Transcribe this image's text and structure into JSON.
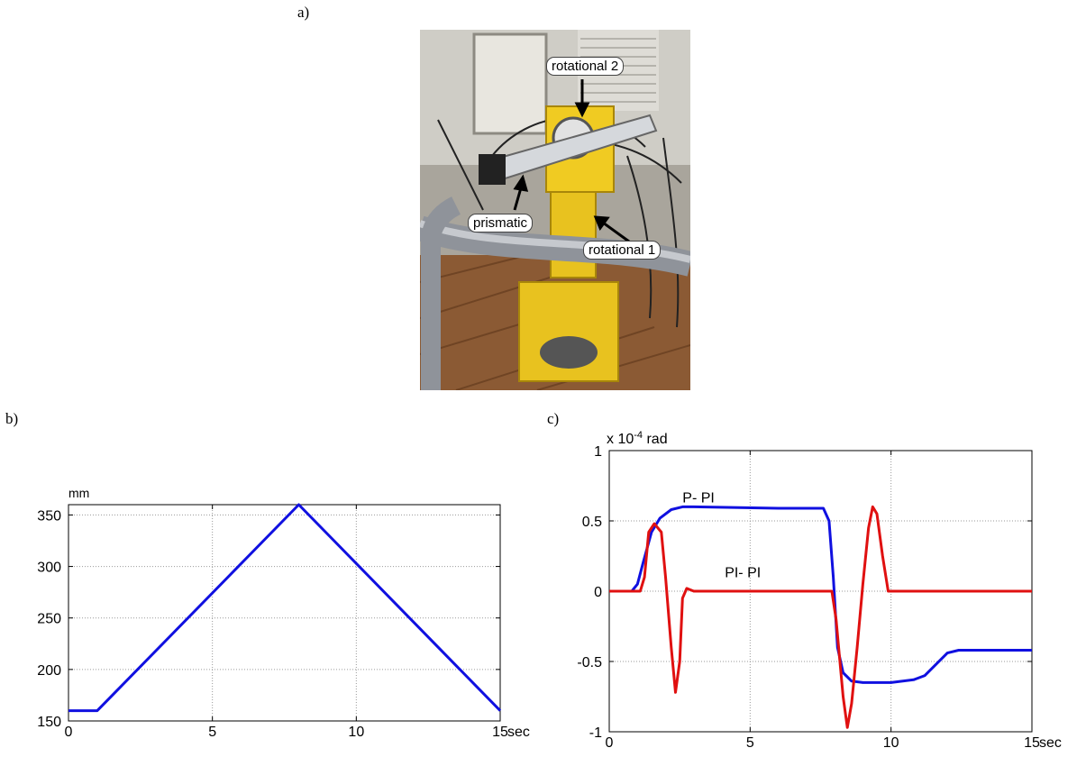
{
  "panels": {
    "a": "a)",
    "b": "b)",
    "c": "c)"
  },
  "photo": {
    "labels": [
      "rotational 2",
      "prismatic",
      "rotational 1"
    ]
  },
  "chart_data": [
    {
      "type": "line",
      "panel": "b",
      "ylabel": "mm",
      "xlabel": "sec",
      "xlim": [
        0,
        15
      ],
      "ylim": [
        150,
        360
      ],
      "xticks": [
        0,
        5,
        10,
        15
      ],
      "yticks": [
        150,
        200,
        250,
        300,
        350
      ],
      "grid": true,
      "series": [
        {
          "color": "#1010e0",
          "x": [
            0,
            1,
            8,
            15
          ],
          "y": [
            160,
            160,
            360,
            160
          ]
        }
      ]
    },
    {
      "type": "line",
      "panel": "c",
      "ylabel": "x 10^-4 rad",
      "ylabel_parts": [
        "x 10",
        "-4",
        " rad"
      ],
      "xlabel": "sec",
      "xlim": [
        0,
        15
      ],
      "ylim": [
        -1,
        1
      ],
      "xticks": [
        0,
        5,
        10,
        15
      ],
      "yticks": [
        1,
        0.5,
        0,
        -0.5,
        -1
      ],
      "ytick_labels": [
        "1",
        "0.5",
        "0",
        "-0.5",
        "-1"
      ],
      "grid": true,
      "annotations": [
        {
          "text": "P- PI",
          "x": 2.6,
          "y": 0.63
        },
        {
          "text": "PI- PI",
          "x": 4.1,
          "y": 0.1
        }
      ],
      "series": [
        {
          "name": "P- PI",
          "color": "#1010e0",
          "x": [
            0,
            0.8,
            1.0,
            1.2,
            1.5,
            1.8,
            2.2,
            2.6,
            3.0,
            6.0,
            7.0,
            7.6,
            7.8,
            7.95,
            8.1,
            8.3,
            8.6,
            9.0,
            10.0,
            10.8,
            11.2,
            11.6,
            12.0,
            12.4,
            13.0,
            15.0
          ],
          "y": [
            0,
            0,
            0.05,
            0.2,
            0.42,
            0.52,
            0.58,
            0.6,
            0.6,
            0.59,
            0.59,
            0.59,
            0.5,
            0.1,
            -0.4,
            -0.58,
            -0.64,
            -0.65,
            -0.65,
            -0.63,
            -0.6,
            -0.52,
            -0.44,
            -0.42,
            -0.42,
            -0.42
          ]
        },
        {
          "name": "PI- PI",
          "color": "#e01010",
          "x": [
            0,
            1.1,
            1.25,
            1.4,
            1.6,
            1.85,
            2.0,
            2.2,
            2.35,
            2.5,
            2.6,
            2.75,
            3.0,
            7.9,
            8.05,
            8.3,
            8.45,
            8.6,
            8.8,
            9.0,
            9.2,
            9.35,
            9.5,
            9.7,
            9.9,
            10.1,
            15.0
          ],
          "y": [
            0,
            0,
            0.1,
            0.42,
            0.48,
            0.42,
            0.1,
            -0.4,
            -0.72,
            -0.5,
            -0.05,
            0.02,
            0,
            0,
            -0.2,
            -0.75,
            -0.97,
            -0.8,
            -0.4,
            0.05,
            0.45,
            0.6,
            0.55,
            0.25,
            0,
            0,
            0
          ]
        }
      ]
    }
  ]
}
